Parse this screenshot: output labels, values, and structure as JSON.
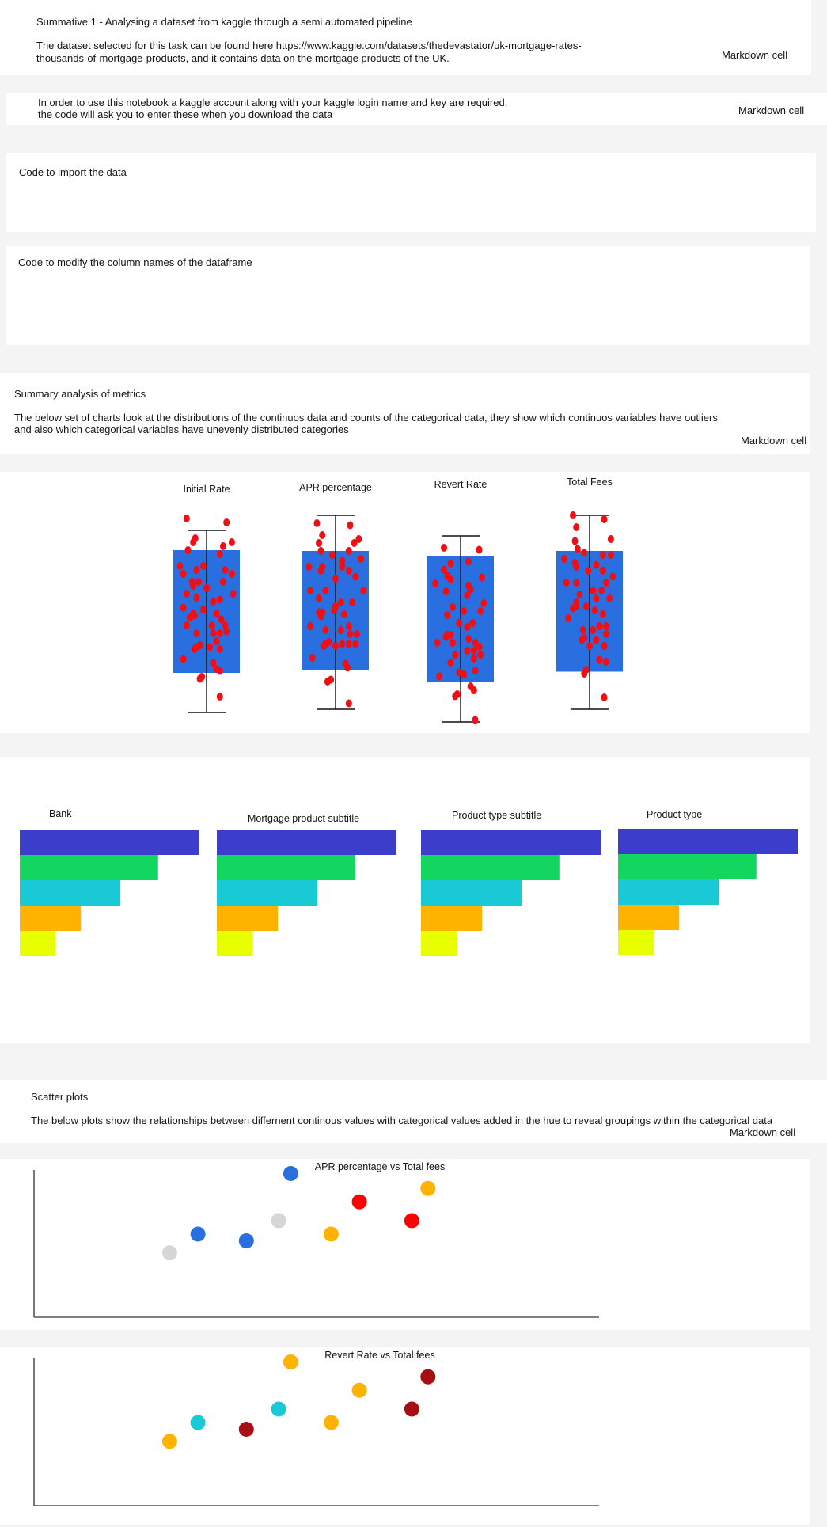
{
  "cells": {
    "intro": {
      "title": "Summative 1 - Analysing a dataset from kaggle through a semi automated pipeline",
      "line1": "The dataset selected for this task can be found here https://www.kaggle.com/datasets/thedevastator/uk-mortgage-rates-",
      "line2": "thousands-of-mortgage-products, and it contains data on the mortgage products of the UK.",
      "label": "Markdown cell"
    },
    "login": {
      "line1": "In order to use this notebook a kaggle account along with your kaggle login name and key are required,",
      "line2": "the code will ask you to enter these when you download the data",
      "label": "Markdown cell"
    },
    "import_code": {
      "title": "Code to import the data"
    },
    "modify_code": {
      "title": "Code to modify the column names of the dataframe"
    },
    "summary": {
      "title": "Summary analysis of metrics",
      "line1": "The below set of charts look at the distributions of the continuos data and counts of the categorical data, they show which continuos variables have outliers",
      "line2": "and also which categorical variables have unevenly distributed categories",
      "label": "Markdown cell"
    },
    "scatter_md": {
      "title": "Scatter plots",
      "line1": "The below plots show the relationships between differnent continous values with categorical values added in the hue to reveal groupings within the categorical data",
      "label": "Markdown cell"
    }
  },
  "chart_data": [
    {
      "type": "box",
      "title": "Initial Rate",
      "box_color": "#2a6fe0",
      "point_color": "#f20f14",
      "whisker_low": 0.0,
      "q1": 0.2,
      "q3": 0.82,
      "whisker_high": 0.92,
      "points": [
        [
          0.2,
          0.98
        ],
        [
          0.8,
          0.96
        ],
        [
          0.33,
          0.88
        ],
        [
          0.3,
          0.86
        ],
        [
          0.88,
          0.86
        ],
        [
          0.75,
          0.84
        ],
        [
          0.22,
          0.82
        ],
        [
          0.7,
          0.8
        ],
        [
          0.1,
          0.74
        ],
        [
          0.45,
          0.74
        ],
        [
          0.35,
          0.72
        ],
        [
          0.78,
          0.72
        ],
        [
          0.15,
          0.7
        ],
        [
          0.88,
          0.7
        ],
        [
          0.28,
          0.66
        ],
        [
          0.38,
          0.66
        ],
        [
          0.75,
          0.66
        ],
        [
          0.3,
          0.64
        ],
        [
          0.5,
          0.63
        ],
        [
          0.2,
          0.6
        ],
        [
          0.9,
          0.6
        ],
        [
          0.35,
          0.58
        ],
        [
          0.6,
          0.56
        ],
        [
          0.7,
          0.57
        ],
        [
          0.15,
          0.53
        ],
        [
          0.45,
          0.52
        ],
        [
          0.3,
          0.5
        ],
        [
          0.32,
          0.49
        ],
        [
          0.25,
          0.48
        ],
        [
          0.65,
          0.5
        ],
        [
          0.72,
          0.47
        ],
        [
          0.58,
          0.44
        ],
        [
          0.78,
          0.44
        ],
        [
          0.2,
          0.44
        ],
        [
          0.35,
          0.4
        ],
        [
          0.6,
          0.4
        ],
        [
          0.7,
          0.4
        ],
        [
          0.8,
          0.41
        ],
        [
          0.65,
          0.36
        ],
        [
          0.4,
          0.34
        ],
        [
          0.35,
          0.33
        ],
        [
          0.55,
          0.33
        ],
        [
          0.32,
          0.32
        ],
        [
          0.7,
          0.32
        ],
        [
          0.15,
          0.27
        ],
        [
          0.6,
          0.25
        ],
        [
          0.65,
          0.22
        ],
        [
          0.7,
          0.21
        ],
        [
          0.4,
          0.17
        ],
        [
          0.43,
          0.18
        ],
        [
          0.7,
          0.08
        ]
      ]
    },
    {
      "type": "box",
      "title": "APR percentage",
      "box_color": "#2a6fe0",
      "point_color": "#f20f14",
      "whisker_low": 0.0,
      "q1": 0.2,
      "q3": 0.8,
      "whisker_high": 0.98,
      "points": [
        [
          0.22,
          0.94
        ],
        [
          0.72,
          0.93
        ],
        [
          0.3,
          0.88
        ],
        [
          0.78,
          0.84
        ],
        [
          0.25,
          0.84
        ],
        [
          0.85,
          0.86
        ],
        [
          0.28,
          0.8
        ],
        [
          0.7,
          0.8
        ],
        [
          0.45,
          0.78
        ],
        [
          0.88,
          0.76
        ],
        [
          0.6,
          0.75
        ],
        [
          0.1,
          0.72
        ],
        [
          0.3,
          0.72
        ],
        [
          0.6,
          0.72
        ],
        [
          0.28,
          0.7
        ],
        [
          0.7,
          0.7
        ],
        [
          0.5,
          0.66
        ],
        [
          0.8,
          0.67
        ],
        [
          0.12,
          0.6
        ],
        [
          0.35,
          0.6
        ],
        [
          0.92,
          0.6
        ],
        [
          0.25,
          0.56
        ],
        [
          0.58,
          0.54
        ],
        [
          0.75,
          0.54
        ],
        [
          0.5,
          0.52
        ],
        [
          0.3,
          0.49
        ],
        [
          0.25,
          0.49
        ],
        [
          0.63,
          0.48
        ],
        [
          0.28,
          0.47
        ],
        [
          0.48,
          0.5
        ],
        [
          0.12,
          0.42
        ],
        [
          0.7,
          0.42
        ],
        [
          0.35,
          0.4
        ],
        [
          0.58,
          0.4
        ],
        [
          0.72,
          0.38
        ],
        [
          0.82,
          0.38
        ],
        [
          0.4,
          0.34
        ],
        [
          0.35,
          0.33
        ],
        [
          0.32,
          0.32
        ],
        [
          0.6,
          0.33
        ],
        [
          0.7,
          0.33
        ],
        [
          0.5,
          0.32
        ],
        [
          0.8,
          0.33
        ],
        [
          0.15,
          0.26
        ],
        [
          0.65,
          0.23
        ],
        [
          0.68,
          0.21
        ],
        [
          0.43,
          0.15
        ],
        [
          0.38,
          0.14
        ],
        [
          0.7,
          0.03
        ]
      ]
    },
    {
      "type": "box",
      "title": "Revert Rate",
      "box_color": "#2a6fe0",
      "point_color": "#f20f14",
      "whisker_low": 0.0,
      "q1": 0.2,
      "q3": 0.84,
      "whisker_high": 0.94,
      "points": [
        [
          0.25,
          0.88
        ],
        [
          0.78,
          0.87
        ],
        [
          0.35,
          0.8
        ],
        [
          0.62,
          0.81
        ],
        [
          0.25,
          0.77
        ],
        [
          0.3,
          0.74
        ],
        [
          0.82,
          0.73
        ],
        [
          0.12,
          0.7
        ],
        [
          0.35,
          0.72
        ],
        [
          0.62,
          0.69
        ],
        [
          0.65,
          0.67
        ],
        [
          0.28,
          0.66
        ],
        [
          0.6,
          0.64
        ],
        [
          0.85,
          0.6
        ],
        [
          0.38,
          0.58
        ],
        [
          0.8,
          0.56
        ],
        [
          0.3,
          0.54
        ],
        [
          0.55,
          0.56
        ],
        [
          0.48,
          0.5
        ],
        [
          0.68,
          0.5
        ],
        [
          0.3,
          0.44
        ],
        [
          0.28,
          0.43
        ],
        [
          0.35,
          0.44
        ],
        [
          0.6,
          0.48
        ],
        [
          0.62,
          0.42
        ],
        [
          0.15,
          0.4
        ],
        [
          0.38,
          0.4
        ],
        [
          0.72,
          0.4
        ],
        [
          0.78,
          0.38
        ],
        [
          0.6,
          0.36
        ],
        [
          0.7,
          0.36
        ],
        [
          0.8,
          0.34
        ],
        [
          0.42,
          0.34
        ],
        [
          0.35,
          0.3
        ],
        [
          0.7,
          0.32
        ],
        [
          0.72,
          0.26
        ],
        [
          0.48,
          0.25
        ],
        [
          0.55,
          0.24
        ],
        [
          0.18,
          0.23
        ],
        [
          0.65,
          0.18
        ],
        [
          0.7,
          0.16
        ],
        [
          0.45,
          0.14
        ],
        [
          0.42,
          0.13
        ],
        [
          0.72,
          0.01
        ]
      ]
    },
    {
      "type": "box",
      "title": "Total Fees",
      "box_color": "#2a6fe0",
      "point_color": "#f20f14",
      "whisker_low": 0.0,
      "q1": 0.19,
      "q3": 0.8,
      "whisker_high": 0.98,
      "points": [
        [
          0.25,
          0.98
        ],
        [
          0.72,
          0.96
        ],
        [
          0.3,
          0.92
        ],
        [
          0.82,
          0.86
        ],
        [
          0.28,
          0.85
        ],
        [
          0.32,
          0.81
        ],
        [
          0.12,
          0.76
        ],
        [
          0.42,
          0.79
        ],
        [
          0.7,
          0.78
        ],
        [
          0.82,
          0.78
        ],
        [
          0.28,
          0.74
        ],
        [
          0.6,
          0.73
        ],
        [
          0.3,
          0.72
        ],
        [
          0.48,
          0.7
        ],
        [
          0.7,
          0.7
        ],
        [
          0.85,
          0.67
        ],
        [
          0.15,
          0.64
        ],
        [
          0.3,
          0.64
        ],
        [
          0.75,
          0.64
        ],
        [
          0.55,
          0.6
        ],
        [
          0.35,
          0.58
        ],
        [
          0.68,
          0.6
        ],
        [
          0.3,
          0.54
        ],
        [
          0.6,
          0.56
        ],
        [
          0.8,
          0.56
        ],
        [
          0.3,
          0.52
        ],
        [
          0.25,
          0.51
        ],
        [
          0.45,
          0.52
        ],
        [
          0.58,
          0.5
        ],
        [
          0.7,
          0.48
        ],
        [
          0.18,
          0.46
        ],
        [
          0.65,
          0.42
        ],
        [
          0.75,
          0.42
        ],
        [
          0.4,
          0.4
        ],
        [
          0.55,
          0.4
        ],
        [
          0.75,
          0.38
        ],
        [
          0.42,
          0.36
        ],
        [
          0.38,
          0.35
        ],
        [
          0.6,
          0.35
        ],
        [
          0.5,
          0.32
        ],
        [
          0.72,
          0.32
        ],
        [
          0.65,
          0.25
        ],
        [
          0.75,
          0.24
        ],
        [
          0.45,
          0.2
        ],
        [
          0.42,
          0.18
        ],
        [
          0.72,
          0.06
        ]
      ]
    },
    {
      "type": "bar",
      "orientation": "horizontal",
      "title": "Bank",
      "values": [
        100,
        77,
        56,
        34,
        20
      ],
      "colors": [
        "#3d3dcc",
        "#12d660",
        "#1ac9d6",
        "#ffb300",
        "#e8ff00"
      ]
    },
    {
      "type": "bar",
      "orientation": "horizontal",
      "title": "Mortgage product subtitle",
      "values": [
        100,
        77,
        56,
        34,
        20
      ],
      "colors": [
        "#3d3dcc",
        "#12d660",
        "#1ac9d6",
        "#ffb300",
        "#e8ff00"
      ]
    },
    {
      "type": "bar",
      "orientation": "horizontal",
      "title": "Product type subtitle",
      "values": [
        100,
        77,
        56,
        34,
        20
      ],
      "colors": [
        "#3d3dcc",
        "#12d660",
        "#1ac9d6",
        "#ffb300",
        "#e8ff00"
      ]
    },
    {
      "type": "bar",
      "orientation": "horizontal",
      "title": "Product type",
      "values": [
        100,
        77,
        56,
        34,
        20
      ],
      "colors": [
        "#3d3dcc",
        "#12d660",
        "#1ac9d6",
        "#ffb300",
        "#e8ff00"
      ]
    },
    {
      "type": "scatter",
      "title": "APR percentage vs Total fees",
      "xlim": [
        0,
        100
      ],
      "ylim": [
        0,
        100
      ],
      "points": [
        {
          "x": 14,
          "y": 36,
          "color": "#d6d6d6"
        },
        {
          "x": 21,
          "y": 50,
          "color": "#2a6fe0"
        },
        {
          "x": 33,
          "y": 45,
          "color": "#2a6fe0"
        },
        {
          "x": 41,
          "y": 60,
          "color": "#d6d6d6"
        },
        {
          "x": 44,
          "y": 95,
          "color": "#2a6fe0"
        },
        {
          "x": 54,
          "y": 50,
          "color": "#ffb300"
        },
        {
          "x": 61,
          "y": 74,
          "color": "#ff0000"
        },
        {
          "x": 74,
          "y": 60,
          "color": "#ff0000"
        },
        {
          "x": 78,
          "y": 84,
          "color": "#ffb300"
        }
      ]
    },
    {
      "type": "scatter",
      "title": "Revert Rate vs Total fees",
      "xlim": [
        0,
        100
      ],
      "ylim": [
        0,
        100
      ],
      "points": [
        {
          "x": 14,
          "y": 36,
          "color": "#ffb300"
        },
        {
          "x": 21,
          "y": 50,
          "color": "#1ac9d6"
        },
        {
          "x": 33,
          "y": 45,
          "color": "#a80f14"
        },
        {
          "x": 41,
          "y": 60,
          "color": "#1ac9d6"
        },
        {
          "x": 44,
          "y": 95,
          "color": "#ffb300"
        },
        {
          "x": 54,
          "y": 50,
          "color": "#ffb300"
        },
        {
          "x": 61,
          "y": 74,
          "color": "#ffb300"
        },
        {
          "x": 74,
          "y": 60,
          "color": "#a80f14"
        },
        {
          "x": 78,
          "y": 84,
          "color": "#a80f14"
        }
      ]
    }
  ]
}
